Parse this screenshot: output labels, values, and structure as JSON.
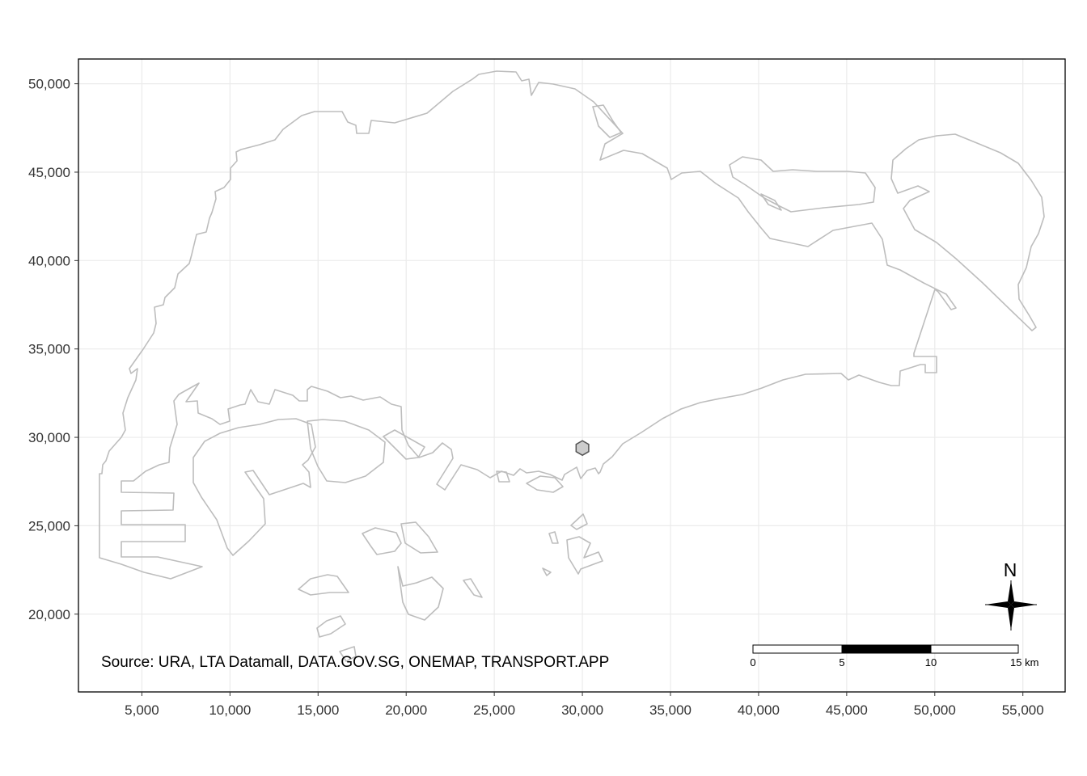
{
  "map": {
    "x_ticks": [
      "5,000",
      "10,000",
      "15,000",
      "20,000",
      "25,000",
      "30,000",
      "35,000",
      "40,000",
      "45,000",
      "50,000",
      "55,000"
    ],
    "y_ticks": [
      "50,000",
      "45,000",
      "40,000",
      "35,000",
      "30,000",
      "25,000",
      "20,000"
    ],
    "x_tick_values": [
      5000,
      10000,
      15000,
      20000,
      25000,
      30000,
      35000,
      40000,
      45000,
      50000,
      55000
    ],
    "y_tick_values": [
      50000,
      45000,
      40000,
      35000,
      30000,
      25000,
      20000
    ],
    "x_range": [
      1400,
      57400
    ],
    "y_range": [
      15600,
      51400
    ],
    "source": "Source: URA, LTA Datamall, DATA.GOV.SG, ONEMAP, TRANSPORT.APP",
    "point": {
      "x": 30000,
      "y": 29400,
      "fill": "#cccccc",
      "stroke": "#555555"
    },
    "scale_bar": {
      "labels": [
        "0",
        "5",
        "10",
        "15 km"
      ],
      "segments_km": [
        0,
        5,
        10,
        15
      ]
    },
    "north_arrow": {
      "label": "N"
    },
    "colors": {
      "coastline": "#bdbdbd",
      "grid": "#ebebeb",
      "panel_border": "#000000"
    }
  }
}
